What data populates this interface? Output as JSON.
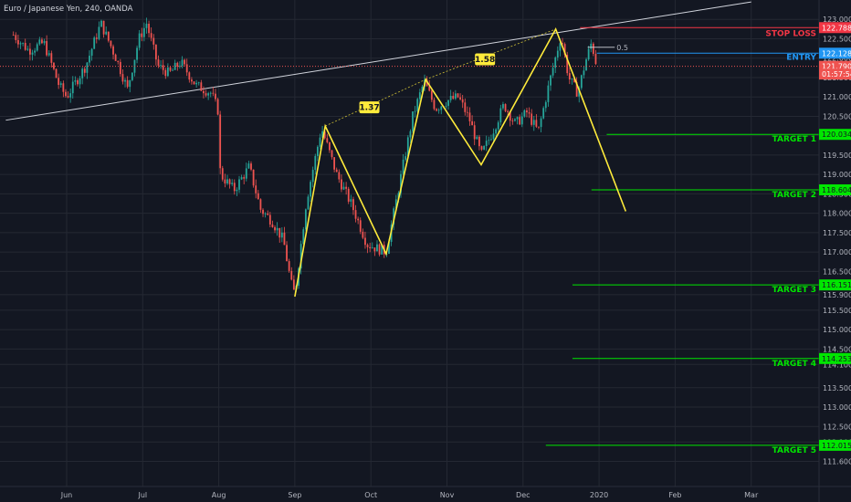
{
  "header": {
    "title": "Euro / Japanese Yen, 240, OANDA"
  },
  "colors": {
    "background": "#131722",
    "grid": "#242833",
    "text": "#b2b5be",
    "candle_up": "#26a69a",
    "candle_down": "#ef5350",
    "pattern": "#ffeb3b",
    "trendline": "#d1d4dc",
    "target": "#00e600",
    "stop": "#f23645",
    "entry": "#2196f3"
  },
  "chart_data": {
    "type": "candlestick",
    "symbol": "Euro / Japanese Yen",
    "timeframe": "240",
    "source": "OANDA",
    "ylim": [
      111.4,
      123.1
    ],
    "y_ticks": [
      "123.000",
      "122.500",
      "122.000",
      "121.500",
      "121.000",
      "120.500",
      "120.000",
      "119.500",
      "119.000",
      "118.500",
      "118.000",
      "117.500",
      "117.000",
      "116.500",
      "115.900",
      "115.500",
      "115.000",
      "114.500",
      "114.100",
      "113.500",
      "113.000",
      "112.500",
      "112.100",
      "111.600"
    ],
    "x_ticks": [
      {
        "label": "Jun",
        "month_index": 0
      },
      {
        "label": "Jul",
        "month_index": 1
      },
      {
        "label": "Aug",
        "month_index": 2
      },
      {
        "label": "Sep",
        "month_index": 3
      },
      {
        "label": "Oct",
        "month_index": 4
      },
      {
        "label": "Nov",
        "month_index": 5
      },
      {
        "label": "Dec",
        "month_index": 6
      },
      {
        "label": "2020",
        "month_index": 7
      },
      {
        "label": "Feb",
        "month_index": 8
      },
      {
        "label": "Mar",
        "month_index": 9
      }
    ],
    "price_path": [
      {
        "m": -0.7,
        "p": 122.6
      },
      {
        "m": -0.5,
        "p": 122.2
      },
      {
        "m": -0.3,
        "p": 122.4
      },
      {
        "m": -0.1,
        "p": 121.3
      },
      {
        "m": 0.0,
        "p": 121.0
      },
      {
        "m": 0.25,
        "p": 121.8
      },
      {
        "m": 0.45,
        "p": 122.9
      },
      {
        "m": 0.65,
        "p": 122.0
      },
      {
        "m": 0.8,
        "p": 121.2
      },
      {
        "m": 0.95,
        "p": 122.5
      },
      {
        "m": 1.05,
        "p": 122.9
      },
      {
        "m": 1.2,
        "p": 121.8
      },
      {
        "m": 1.35,
        "p": 121.6
      },
      {
        "m": 1.5,
        "p": 121.9
      },
      {
        "m": 1.7,
        "p": 121.3
      },
      {
        "m": 1.9,
        "p": 121.1
      },
      {
        "m": 2.0,
        "p": 120.6
      },
      {
        "m": 2.02,
        "p": 119.0
      },
      {
        "m": 2.2,
        "p": 118.6
      },
      {
        "m": 2.4,
        "p": 119.2
      },
      {
        "m": 2.55,
        "p": 118.1
      },
      {
        "m": 2.7,
        "p": 117.8
      },
      {
        "m": 2.85,
        "p": 117.3
      },
      {
        "m": 2.95,
        "p": 116.2
      },
      {
        "m": 3.0,
        "p": 115.9
      },
      {
        "m": 3.15,
        "p": 118.3
      },
      {
        "m": 3.35,
        "p": 120.2
      },
      {
        "m": 3.55,
        "p": 119.0
      },
      {
        "m": 3.75,
        "p": 118.2
      },
      {
        "m": 3.95,
        "p": 117.2
      },
      {
        "m": 4.2,
        "p": 117.0
      },
      {
        "m": 4.35,
        "p": 118.5
      },
      {
        "m": 4.55,
        "p": 120.5
      },
      {
        "m": 4.7,
        "p": 121.4
      },
      {
        "m": 4.85,
        "p": 120.7
      },
      {
        "m": 5.0,
        "p": 120.9
      },
      {
        "m": 5.15,
        "p": 121.0
      },
      {
        "m": 5.3,
        "p": 120.4
      },
      {
        "m": 5.45,
        "p": 119.5
      },
      {
        "m": 5.6,
        "p": 120.1
      },
      {
        "m": 5.75,
        "p": 120.8
      },
      {
        "m": 5.9,
        "p": 120.3
      },
      {
        "m": 6.05,
        "p": 120.6
      },
      {
        "m": 6.2,
        "p": 120.1
      },
      {
        "m": 6.35,
        "p": 121.4
      },
      {
        "m": 6.5,
        "p": 122.6
      },
      {
        "m": 6.6,
        "p": 121.5
      },
      {
        "m": 6.72,
        "p": 121.1
      },
      {
        "m": 6.82,
        "p": 121.9
      },
      {
        "m": 6.9,
        "p": 122.4
      },
      {
        "m": 6.97,
        "p": 121.8
      }
    ],
    "harmonic_pattern": {
      "points": [
        {
          "m": 3.0,
          "p": 115.85
        },
        {
          "m": 3.4,
          "p": 120.25
        },
        {
          "m": 4.2,
          "p": 116.95
        },
        {
          "m": 4.72,
          "p": 121.45
        },
        {
          "m": 5.45,
          "p": 119.25
        },
        {
          "m": 6.43,
          "p": 122.75
        },
        {
          "m": 7.35,
          "p": 118.05
        }
      ],
      "ratio_lines": [
        {
          "from": 1,
          "to": 3,
          "label": "1.37",
          "label_m": 3.98,
          "label_p": 120.73
        },
        {
          "from": 3,
          "to": 5,
          "label": "1.58",
          "label_m": 5.5,
          "label_p": 121.97
        }
      ]
    },
    "trendlines": [
      {
        "from_m": -0.8,
        "from_p": 120.4,
        "to_m": 9.0,
        "to_p": 123.45
      }
    ],
    "price_badges": [
      {
        "value": "122.788",
        "p": 122.788,
        "kind": "stop"
      },
      {
        "value": "122.128",
        "p": 122.128,
        "kind": "entry"
      },
      {
        "value": "121.790",
        "p": 121.79,
        "kind": "last"
      },
      {
        "value": "01:57:54",
        "p": 121.59,
        "kind": "timer"
      },
      {
        "value": "120.034",
        "p": 120.034,
        "kind": "target"
      },
      {
        "value": "118.604",
        "p": 118.604,
        "kind": "target"
      },
      {
        "value": "116.151",
        "p": 116.151,
        "kind": "target"
      },
      {
        "value": "114.253",
        "p": 114.253,
        "kind": "target"
      },
      {
        "value": "112.015",
        "p": 112.015,
        "kind": "target"
      }
    ],
    "levels": [
      {
        "label": "STOP LOSS",
        "p": 122.788,
        "start_m": 6.75,
        "kind": "stop"
      },
      {
        "label": "ENTRY",
        "p": 122.128,
        "start_m": 6.97,
        "kind": "entry"
      },
      {
        "label": "TARGET 1",
        "p": 120.034,
        "start_m": 7.1,
        "kind": "target"
      },
      {
        "label": "TARGET 2",
        "p": 118.604,
        "start_m": 6.9,
        "kind": "target"
      },
      {
        "label": "TARGET 3",
        "p": 116.151,
        "start_m": 6.65,
        "kind": "target"
      },
      {
        "label": "TARGET 4",
        "p": 114.253,
        "start_m": 6.65,
        "kind": "target"
      },
      {
        "label": "TARGET 5",
        "p": 112.015,
        "start_m": 6.3,
        "kind": "target"
      }
    ],
    "fib_label": {
      "text": "0.5",
      "p": 122.28,
      "m": 7.23
    },
    "last_price_line": {
      "p": 121.79
    },
    "grid": true
  }
}
